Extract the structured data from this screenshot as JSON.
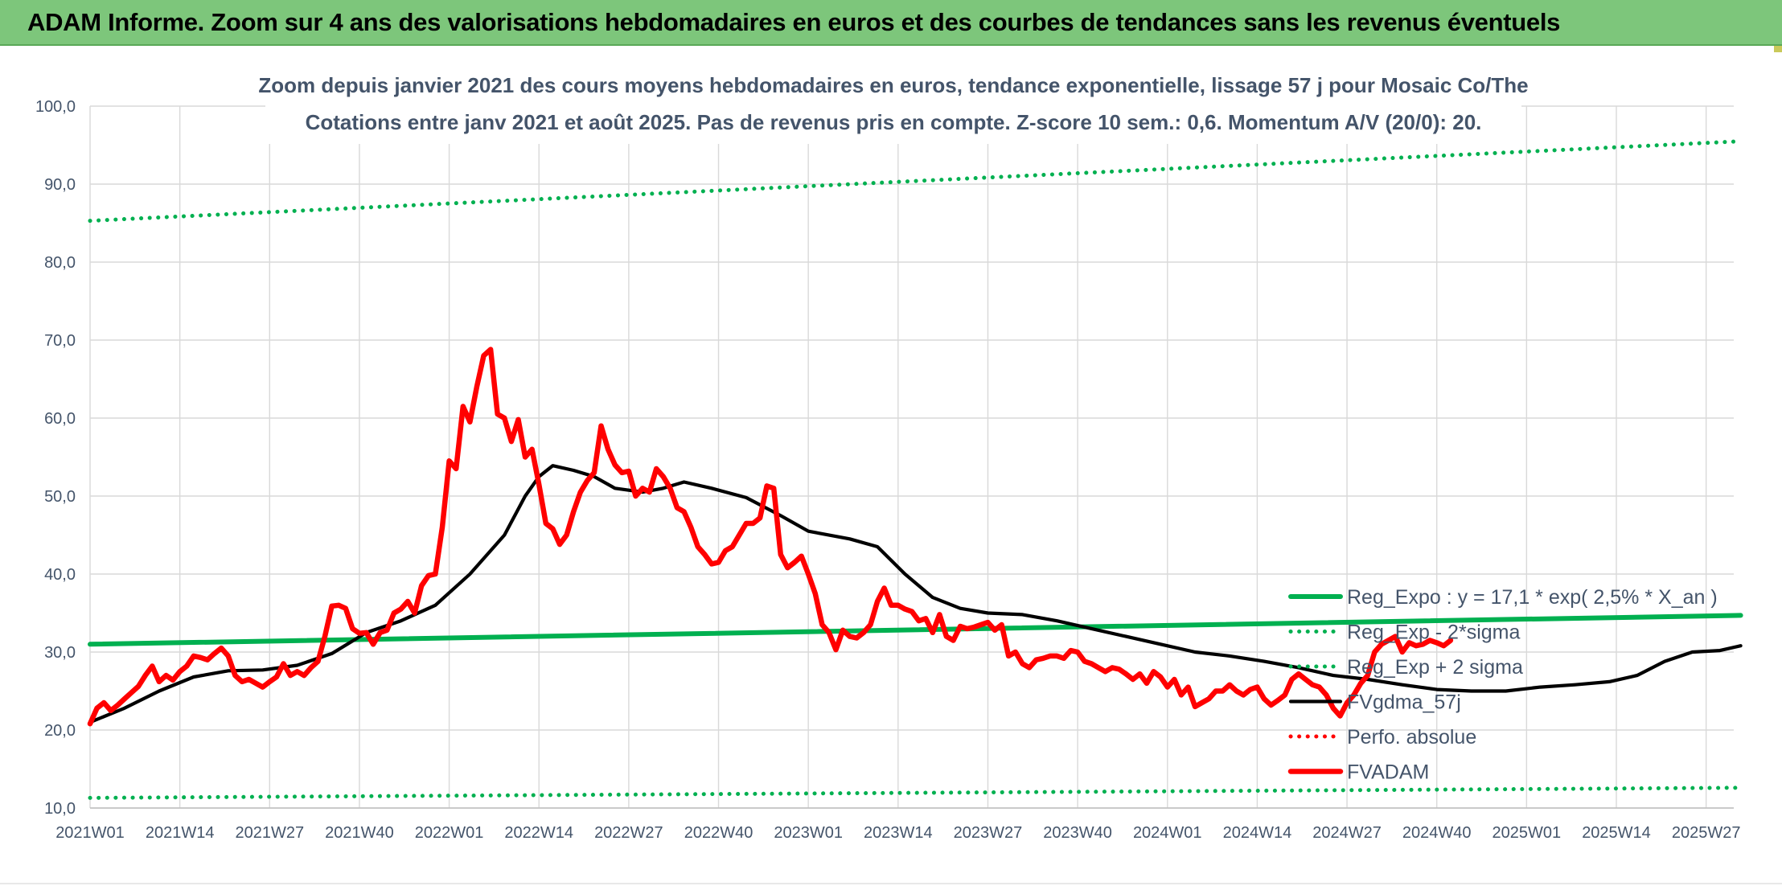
{
  "header": {
    "title": "ADAM Informe. Zoom sur 4 ans des valorisations hebdomadaires en euros et des courbes de tendances sans les revenus éventuels"
  },
  "colors": {
    "banner": "#7dc67b",
    "trend_green": "#00b050",
    "price_red": "#ff0000",
    "smooth_black": "#000000",
    "text": "#44546a",
    "grid": "#d9d9d9"
  },
  "chart_data": {
    "type": "line",
    "title": "Zoom depuis janvier 2021 des cours moyens hebdomadaires en euros, tendance exponentielle, lissage 57 j pour Mosaic Co/The",
    "subtitle": "Cotations entre janv 2021 et août 2025. Pas de revenus pris en compte. Z-score 10 sem.: 0,6. Momentum A/V (20/0): 20.",
    "xlabel": "",
    "ylabel": "",
    "ylim": [
      10,
      100
    ],
    "y_ticks": [
      "10,0",
      "20,0",
      "30,0",
      "40,0",
      "50,0",
      "60,0",
      "70,0",
      "80,0",
      "90,0",
      "100,0"
    ],
    "x_start_label": "2021W01",
    "x_week_count": 239,
    "x_ticks": [
      {
        "label": "2021W01",
        "week": 0
      },
      {
        "label": "2021W14",
        "week": 13
      },
      {
        "label": "2021W27",
        "week": 26
      },
      {
        "label": "2021W40",
        "week": 39
      },
      {
        "label": "2022W01",
        "week": 52
      },
      {
        "label": "2022W14",
        "week": 65
      },
      {
        "label": "2022W27",
        "week": 78
      },
      {
        "label": "2022W40",
        "week": 91
      },
      {
        "label": "2023W01",
        "week": 104
      },
      {
        "label": "2023W14",
        "week": 117
      },
      {
        "label": "2023W27",
        "week": 130
      },
      {
        "label": "2023W40",
        "week": 143
      },
      {
        "label": "2024W01",
        "week": 156
      },
      {
        "label": "2024W14",
        "week": 169
      },
      {
        "label": "2024W27",
        "week": 182
      },
      {
        "label": "2024W40",
        "week": 195
      },
      {
        "label": "2025W01",
        "week": 208
      },
      {
        "label": "2025W14",
        "week": 221
      },
      {
        "label": "2025W27",
        "week": 234
      }
    ],
    "grid": true,
    "legend_position": "bottom-right",
    "series": [
      {
        "name": "Reg_Expo : y = 17,1 * exp( 2,5% *  X_an )",
        "color": "#00b050",
        "style": "solid-thick",
        "points": [
          [
            0,
            31.0
          ],
          [
            239,
            34.7
          ]
        ]
      },
      {
        "name": "Reg_Exp - 2*sigma",
        "color": "#00b050",
        "style": "dotted",
        "points": [
          [
            0,
            11.3
          ],
          [
            239,
            12.6
          ]
        ]
      },
      {
        "name": "Reg_Exp + 2 sigma",
        "color": "#00b050",
        "style": "dotted",
        "points": [
          [
            0,
            85.3
          ],
          [
            239,
            95.5
          ]
        ]
      },
      {
        "name": "FVgdma_57j",
        "color": "#000000",
        "style": "solid",
        "points": [
          [
            0,
            21.0
          ],
          [
            5,
            22.8
          ],
          [
            10,
            25.0
          ],
          [
            15,
            26.8
          ],
          [
            20,
            27.6
          ],
          [
            25,
            27.7
          ],
          [
            30,
            28.3
          ],
          [
            35,
            29.8
          ],
          [
            40,
            32.5
          ],
          [
            45,
            34.0
          ],
          [
            50,
            36.0
          ],
          [
            55,
            40.0
          ],
          [
            60,
            45.0
          ],
          [
            63,
            50.0
          ],
          [
            65,
            52.5
          ],
          [
            67,
            53.9
          ],
          [
            70,
            53.3
          ],
          [
            73,
            52.5
          ],
          [
            76,
            51.0
          ],
          [
            80,
            50.5
          ],
          [
            83,
            51.0
          ],
          [
            86,
            51.8
          ],
          [
            90,
            51.0
          ],
          [
            95,
            49.8
          ],
          [
            100,
            47.5
          ],
          [
            104,
            45.5
          ],
          [
            110,
            44.5
          ],
          [
            114,
            43.5
          ],
          [
            118,
            40.0
          ],
          [
            122,
            37.0
          ],
          [
            126,
            35.6
          ],
          [
            130,
            35.0
          ],
          [
            135,
            34.8
          ],
          [
            140,
            34.0
          ],
          [
            145,
            33.0
          ],
          [
            150,
            32.0
          ],
          [
            155,
            31.0
          ],
          [
            160,
            30.0
          ],
          [
            165,
            29.5
          ],
          [
            170,
            28.8
          ],
          [
            175,
            28.0
          ],
          [
            180,
            27.0
          ],
          [
            185,
            26.5
          ],
          [
            190,
            25.8
          ],
          [
            195,
            25.2
          ],
          [
            200,
            25.0
          ],
          [
            205,
            25.0
          ],
          [
            210,
            25.5
          ],
          [
            215,
            25.8
          ],
          [
            220,
            26.2
          ],
          [
            224,
            27.0
          ],
          [
            228,
            28.8
          ],
          [
            232,
            30.0
          ],
          [
            236,
            30.2
          ],
          [
            239,
            30.8
          ]
        ]
      },
      {
        "name": "Perfo. absolue",
        "color": "#ff0000",
        "style": "dotted",
        "points": []
      },
      {
        "name": "FVADAM",
        "color": "#ff0000",
        "style": "solid-thick",
        "points": [
          [
            0,
            20.8
          ],
          [
            1,
            22.8
          ],
          [
            2,
            23.5
          ],
          [
            3,
            22.5
          ],
          [
            4,
            23.2
          ],
          [
            5,
            24.0
          ],
          [
            6,
            24.8
          ],
          [
            7,
            25.6
          ],
          [
            8,
            27.0
          ],
          [
            9,
            28.2
          ],
          [
            10,
            26.2
          ],
          [
            11,
            27.0
          ],
          [
            12,
            26.4
          ],
          [
            13,
            27.5
          ],
          [
            14,
            28.2
          ],
          [
            15,
            29.5
          ],
          [
            16,
            29.3
          ],
          [
            17,
            29.0
          ],
          [
            18,
            29.8
          ],
          [
            19,
            30.5
          ],
          [
            20,
            29.5
          ],
          [
            21,
            27.0
          ],
          [
            22,
            26.2
          ],
          [
            23,
            26.5
          ],
          [
            24,
            26.0
          ],
          [
            25,
            25.5
          ],
          [
            26,
            26.2
          ],
          [
            27,
            26.8
          ],
          [
            28,
            28.5
          ],
          [
            29,
            27.0
          ],
          [
            30,
            27.5
          ],
          [
            31,
            27.0
          ],
          [
            32,
            28.0
          ],
          [
            33,
            28.8
          ],
          [
            34,
            32.0
          ],
          [
            35,
            35.9
          ],
          [
            36,
            36.0
          ],
          [
            37,
            35.6
          ],
          [
            38,
            33.0
          ],
          [
            39,
            32.4
          ],
          [
            40,
            32.5
          ],
          [
            41,
            31.0
          ],
          [
            42,
            32.5
          ],
          [
            43,
            32.8
          ],
          [
            44,
            35.0
          ],
          [
            45,
            35.5
          ],
          [
            46,
            36.5
          ],
          [
            47,
            35.0
          ],
          [
            48,
            38.5
          ],
          [
            49,
            39.8
          ],
          [
            50,
            40.0
          ],
          [
            51,
            46.0
          ],
          [
            52,
            54.5
          ],
          [
            53,
            53.5
          ],
          [
            54,
            61.5
          ],
          [
            55,
            59.5
          ],
          [
            56,
            64.0
          ],
          [
            57,
            68.0
          ],
          [
            58,
            68.8
          ],
          [
            59,
            60.5
          ],
          [
            60,
            60.0
          ],
          [
            61,
            57.0
          ],
          [
            62,
            59.8
          ],
          [
            63,
            55.0
          ],
          [
            64,
            56.0
          ],
          [
            65,
            51.5
          ],
          [
            66,
            46.5
          ],
          [
            67,
            45.8
          ],
          [
            68,
            43.8
          ],
          [
            69,
            45.0
          ],
          [
            70,
            48.0
          ],
          [
            71,
            50.5
          ],
          [
            72,
            52.0
          ],
          [
            73,
            53.0
          ],
          [
            74,
            59.0
          ],
          [
            75,
            56.0
          ],
          [
            76,
            54.0
          ],
          [
            77,
            53.0
          ],
          [
            78,
            53.2
          ],
          [
            79,
            50.0
          ],
          [
            80,
            51.0
          ],
          [
            81,
            50.5
          ],
          [
            82,
            53.5
          ],
          [
            83,
            52.5
          ],
          [
            84,
            51.0
          ],
          [
            85,
            48.5
          ],
          [
            86,
            48.0
          ],
          [
            87,
            46.0
          ],
          [
            88,
            43.5
          ],
          [
            89,
            42.5
          ],
          [
            90,
            41.3
          ],
          [
            91,
            41.5
          ],
          [
            92,
            43.0
          ],
          [
            93,
            43.5
          ],
          [
            94,
            45.0
          ],
          [
            95,
            46.5
          ],
          [
            96,
            46.5
          ],
          [
            97,
            47.2
          ],
          [
            98,
            51.3
          ],
          [
            99,
            51.0
          ],
          [
            100,
            42.5
          ],
          [
            101,
            40.8
          ],
          [
            102,
            41.5
          ],
          [
            103,
            42.3
          ],
          [
            104,
            40.0
          ],
          [
            105,
            37.5
          ],
          [
            106,
            33.5
          ],
          [
            107,
            32.5
          ],
          [
            108,
            30.3
          ],
          [
            109,
            32.8
          ],
          [
            110,
            32.0
          ],
          [
            111,
            31.8
          ],
          [
            112,
            32.5
          ],
          [
            113,
            33.5
          ],
          [
            114,
            36.5
          ],
          [
            115,
            38.2
          ],
          [
            116,
            36.0
          ],
          [
            117,
            36.0
          ],
          [
            118,
            35.5
          ],
          [
            119,
            35.2
          ],
          [
            120,
            34.0
          ],
          [
            121,
            34.3
          ],
          [
            122,
            32.5
          ],
          [
            123,
            34.8
          ],
          [
            124,
            32.0
          ],
          [
            125,
            31.5
          ],
          [
            126,
            33.3
          ],
          [
            127,
            33.0
          ],
          [
            128,
            33.2
          ],
          [
            129,
            33.5
          ],
          [
            130,
            33.8
          ],
          [
            131,
            32.8
          ],
          [
            132,
            33.5
          ],
          [
            133,
            29.5
          ],
          [
            134,
            30.0
          ],
          [
            135,
            28.5
          ],
          [
            136,
            28.0
          ],
          [
            137,
            29.0
          ],
          [
            138,
            29.2
          ],
          [
            139,
            29.5
          ],
          [
            140,
            29.5
          ],
          [
            141,
            29.2
          ],
          [
            142,
            30.2
          ],
          [
            143,
            30.0
          ],
          [
            144,
            28.8
          ],
          [
            145,
            28.5
          ],
          [
            146,
            28.0
          ],
          [
            147,
            27.5
          ],
          [
            148,
            28.0
          ],
          [
            149,
            27.8
          ],
          [
            150,
            27.2
          ],
          [
            151,
            26.5
          ],
          [
            152,
            27.2
          ],
          [
            153,
            26.0
          ],
          [
            154,
            27.5
          ],
          [
            155,
            26.8
          ],
          [
            156,
            25.5
          ],
          [
            157,
            26.5
          ],
          [
            158,
            24.5
          ],
          [
            159,
            25.5
          ],
          [
            160,
            23.0
          ],
          [
            161,
            23.5
          ],
          [
            162,
            24.0
          ],
          [
            163,
            25.0
          ],
          [
            164,
            25.0
          ],
          [
            165,
            25.8
          ],
          [
            166,
            25.0
          ],
          [
            167,
            24.5
          ],
          [
            168,
            25.2
          ],
          [
            169,
            25.5
          ],
          [
            170,
            24.0
          ],
          [
            171,
            23.2
          ],
          [
            172,
            23.8
          ],
          [
            173,
            24.5
          ],
          [
            174,
            26.5
          ],
          [
            175,
            27.2
          ],
          [
            176,
            26.5
          ],
          [
            177,
            25.8
          ],
          [
            178,
            25.5
          ],
          [
            179,
            24.5
          ],
          [
            180,
            22.8
          ],
          [
            181,
            21.8
          ],
          [
            182,
            23.5
          ],
          [
            183,
            24.5
          ],
          [
            184,
            26.0
          ],
          [
            185,
            27.0
          ],
          [
            186,
            30.0
          ],
          [
            187,
            31.0
          ],
          [
            188,
            31.5
          ],
          [
            189,
            32.0
          ],
          [
            190,
            30.0
          ],
          [
            191,
            31.2
          ],
          [
            192,
            30.8
          ],
          [
            193,
            31.0
          ],
          [
            194,
            31.5
          ],
          [
            195,
            31.2
          ],
          [
            196,
            30.8
          ],
          [
            197,
            31.5
          ]
        ]
      }
    ]
  }
}
